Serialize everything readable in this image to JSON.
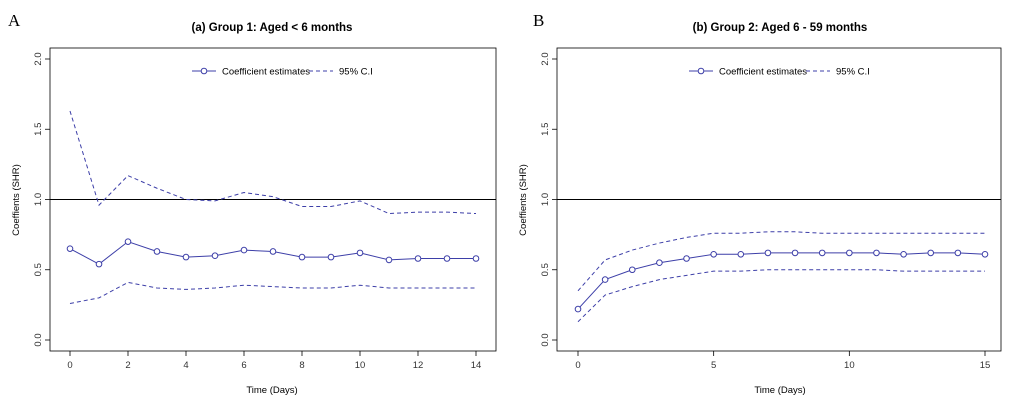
{
  "colors": {
    "series": "#3d3fa8",
    "axis": "#000000",
    "refline": "#000000"
  },
  "legend": {
    "estimate_label": "Coefficient estimates",
    "ci_label": "95% C.I"
  },
  "chart_data": [
    {
      "type": "line",
      "panel": "A",
      "title": "(a) Group 1: Aged < 6 months",
      "xlabel": "Time (Days)",
      "ylabel": "Coeffients (SHR)",
      "xlim": [
        0,
        14
      ],
      "ylim": [
        0,
        2
      ],
      "xticks": [
        0,
        2,
        4,
        6,
        8,
        10,
        12,
        14
      ],
      "xtick_labels": [
        "0",
        "2",
        "4",
        "6",
        "8",
        "10",
        "12",
        "14"
      ],
      "yticks": [
        0,
        0.5,
        1,
        1.5,
        2
      ],
      "ytick_labels": [
        "0.0",
        "0.5",
        "1.0",
        "1.5",
        "2.0"
      ],
      "reference_line": 1.0,
      "legend_position": "top-center",
      "x": [
        0,
        1,
        2,
        3,
        4,
        5,
        6,
        7,
        8,
        9,
        10,
        11,
        12,
        13,
        14
      ],
      "series": [
        {
          "name": "Coefficient estimates",
          "style": "line-circle",
          "values": [
            0.65,
            0.54,
            0.7,
            0.63,
            0.59,
            0.6,
            0.64,
            0.63,
            0.59,
            0.59,
            0.62,
            0.57,
            0.58,
            0.58,
            0.58
          ]
        },
        {
          "name": "95% C.I upper",
          "style": "dashed",
          "values": [
            1.63,
            0.96,
            1.17,
            1.08,
            1.0,
            0.99,
            1.05,
            1.02,
            0.95,
            0.95,
            0.99,
            0.9,
            0.91,
            0.91,
            0.9
          ]
        },
        {
          "name": "95% C.I lower",
          "style": "dashed",
          "values": [
            0.26,
            0.3,
            0.41,
            0.37,
            0.36,
            0.37,
            0.39,
            0.38,
            0.37,
            0.37,
            0.39,
            0.37,
            0.37,
            0.37,
            0.37
          ]
        }
      ]
    },
    {
      "type": "line",
      "panel": "B",
      "title": "(b) Group 2: Aged 6 - 59 months",
      "xlabel": "Time (Days)",
      "ylabel": "Coeffients (SHR)",
      "xlim": [
        0,
        15
      ],
      "ylim": [
        0,
        2
      ],
      "xticks": [
        0,
        5,
        10,
        15
      ],
      "xtick_labels": [
        "0",
        "5",
        "10",
        "15"
      ],
      "yticks": [
        0,
        0.5,
        1,
        1.5,
        2
      ],
      "ytick_labels": [
        "0.0",
        "0.5",
        "1.0",
        "1.5",
        "2.0"
      ],
      "reference_line": 1.0,
      "legend_position": "top-center",
      "x": [
        0,
        1,
        2,
        3,
        4,
        5,
        6,
        7,
        8,
        9,
        10,
        11,
        12,
        13,
        14,
        15
      ],
      "series": [
        {
          "name": "Coefficient estimates",
          "style": "line-circle",
          "values": [
            0.22,
            0.43,
            0.5,
            0.55,
            0.58,
            0.61,
            0.61,
            0.62,
            0.62,
            0.62,
            0.62,
            0.62,
            0.61,
            0.62,
            0.62,
            0.61
          ]
        },
        {
          "name": "95% C.I upper",
          "style": "dashed",
          "values": [
            0.35,
            0.57,
            0.64,
            0.69,
            0.73,
            0.76,
            0.76,
            0.77,
            0.77,
            0.76,
            0.76,
            0.76,
            0.76,
            0.76,
            0.76,
            0.76
          ]
        },
        {
          "name": "95% C.I lower",
          "style": "dashed",
          "values": [
            0.13,
            0.32,
            0.38,
            0.43,
            0.46,
            0.49,
            0.49,
            0.5,
            0.5,
            0.5,
            0.5,
            0.5,
            0.49,
            0.49,
            0.49,
            0.49
          ]
        }
      ]
    }
  ]
}
